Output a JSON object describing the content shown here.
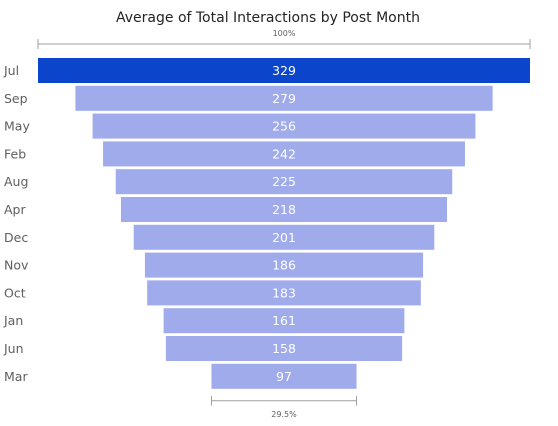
{
  "chart_data": {
    "type": "funnel",
    "title": "Average of Total Interactions by Post Month",
    "categories": [
      "Jul",
      "Sep",
      "May",
      "Feb",
      "Aug",
      "Apr",
      "Dec",
      "Nov",
      "Oct",
      "Jan",
      "Jun",
      "Mar"
    ],
    "values": [
      329,
      279,
      256,
      242,
      225,
      218,
      201,
      186,
      183,
      161,
      158,
      97
    ],
    "top_percent_label": "100%",
    "bottom_percent_label": "29.5%",
    "highlighted_category": "Jul",
    "colors": {
      "highlight": "#0a45cc",
      "bar": "#a0abec",
      "value_label": "#ffffff",
      "category_label": "#605e5c",
      "title": "#252423"
    }
  }
}
